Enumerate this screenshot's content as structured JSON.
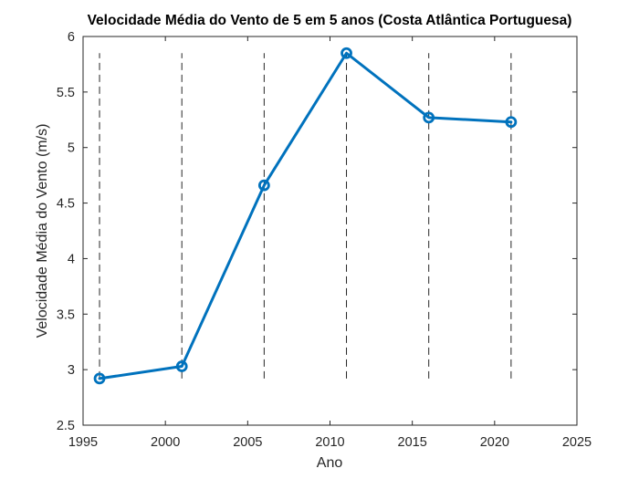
{
  "chart_data": {
    "type": "line",
    "title": "Velocidade Média do Vento de 5 em 5 anos (Costa Atlântica Portuguesa)",
    "xlabel": "Ano",
    "ylabel": "Velocidade Média do Vento (m/s)",
    "xlim": [
      1995,
      2025
    ],
    "ylim": [
      2.5,
      6
    ],
    "xticks": [
      1995,
      2000,
      2005,
      2010,
      2015,
      2020,
      2025
    ],
    "yticks": [
      2.5,
      3,
      3.5,
      4,
      4.5,
      5,
      5.5,
      6
    ],
    "xtick_labels": [
      "1995",
      "2000",
      "2005",
      "2010",
      "2015",
      "2020",
      "2025"
    ],
    "ytick_labels": [
      "2.5",
      "3",
      "3.5",
      "4",
      "4.5",
      "5",
      "5.5",
      "6"
    ],
    "grid": false,
    "legend": "none",
    "series": [
      {
        "x": [
          1996,
          2001,
          2006,
          2011,
          2016,
          2021
        ],
        "y": [
          2.92,
          3.03,
          4.66,
          5.85,
          5.27,
          5.23
        ],
        "color": "#0072BD",
        "marker": "circle"
      }
    ],
    "reference_lines": {
      "style": "dashed",
      "orientation": "vertical",
      "color": "#262626",
      "x": [
        1996,
        2001,
        2006,
        2011,
        2016,
        2021
      ],
      "y_range": [
        2.92,
        5.85
      ]
    }
  }
}
